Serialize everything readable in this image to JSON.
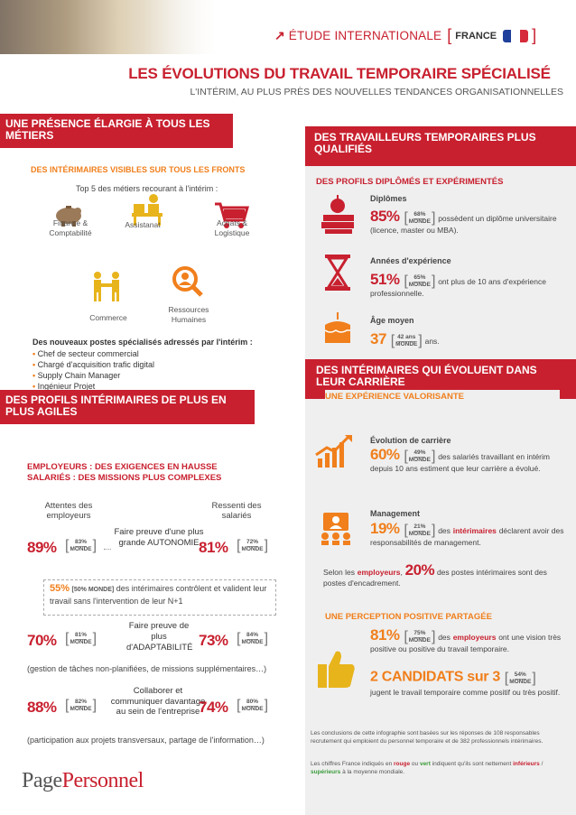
{
  "header": {
    "study_label": "ÉTUDE INTERNATIONALE",
    "country": "FRANCE",
    "title": "LES ÉVOLUTIONS DU TRAVAIL TEMPORAIRE SPÉCIALISÉ",
    "subtitle": "L'INTÉRIM, AU PLUS PRÈS DES NOUVELLES TENDANCES ORGANISATIONNELLES"
  },
  "left_top": {
    "banner": "UNE PRÉSENCE ÉLARGIE À TOUS LES MÉTIERS",
    "heading": "DES INTÉRIMAIRES VISIBLES SUR TOUS LES FRONTS",
    "top5_title": "Top 5 des métiers recourant à l'intérim :",
    "jobs": [
      "Finance & Comptabilité",
      "Assistanat",
      "Achats & Logistique",
      "Commerce",
      "Ressources Humaines"
    ],
    "new_posts_title": "Des nouveaux postes spécialisés adressés par l'intérim :",
    "new_posts": [
      "Chef de secteur commercial",
      "Chargé d'acquisition trafic digital",
      "Supply Chain Manager",
      "Ingénieur Projet"
    ]
  },
  "left_bottom": {
    "banner": "DES PROFILS INTÉRIMAIRES DE PLUS EN PLUS AGILES",
    "heading": "EMPLOYEURS : DES EXIGENCES EN HAUSSE SALARIÉS : DES MISSIONS PLUS COMPLEXES",
    "col_left": "Attentes des employeurs",
    "col_right": "Ressenti des salariés",
    "monde": "MONDE",
    "rows": [
      {
        "left": "89%",
        "left_world": "83%",
        "label": "Faire preuve d'une plus grande AUTONOMIE",
        "right": "81%",
        "right_world": "72%"
      },
      {
        "left": "70%",
        "left_world": "81%",
        "label": "Faire preuve de plus d'ADAPTABILITÉ",
        "right": "73%",
        "right_world": "84%"
      },
      {
        "left": "88%",
        "left_world": "82%",
        "label": "Collaborer et communiquer davantage au sein de l'entreprise",
        "right": "74%",
        "right_world": "80%"
      }
    ],
    "note_pct": "55%",
    "note_world": "[50% MONDE]",
    "note_text": "des intérimaires contrôlent et valident leur travail sans l'intervention de leur N+1",
    "caption_adapt": "(gestion de tâches non-planifiées, de missions supplémentaires…)",
    "caption_collab": "(participation aux projets transversaux, partage de l'information…)"
  },
  "right_top": {
    "banner": "DES TRAVAILLEURS TEMPORAIRES PLUS QUALIFIÉS",
    "heading": "DES PROFILS DIPLÔMÉS ET EXPÉRIMENTÉS",
    "items": [
      {
        "label": "Diplômes",
        "value": "85%",
        "world": "68%",
        "text": "possèdent un diplôme universitaire (licence, master ou MBA)."
      },
      {
        "label": "Années d'expérience",
        "value": "51%",
        "world": "65%",
        "text": "ont plus de 10 ans d'expérience professionnelle."
      },
      {
        "label": "Âge moyen",
        "value": "37",
        "world": "42 ans",
        "text": "ans."
      }
    ]
  },
  "right_bottom": {
    "banner": "DES INTÉRIMAIRES QUI ÉVOLUENT DANS LEUR CARRIÈRE",
    "heading1": "UNE EXPÉRIENCE VALORISANTE",
    "career_label": "Évolution de carrière",
    "career_value": "60%",
    "career_world": "49%",
    "career_text": "des salariés travaillant en intérim depuis 10 ans estiment que leur carrière a évolué.",
    "mgmt_label": "Management",
    "mgmt_value": "19%",
    "mgmt_world": "21%",
    "mgmt_text_pre": "des",
    "mgmt_text_em": "intérimaires",
    "mgmt_text_post": "déclarent avoir des responsabilités de management.",
    "employers_pre": "Selon les",
    "employers_em": "employeurs",
    "employers_value": "20%",
    "employers_text": "des postes intérimaires sont des postes d'encadrement.",
    "heading2": "UNE PERCEPTION POSITIVE PARTAGÉE",
    "vision_value": "81%",
    "vision_world": "75%",
    "vision_pre": "des",
    "vision_em": "employeurs",
    "vision_text": "ont une vision très positive ou positive du travail temporaire.",
    "cand_value": "2 CANDIDATS sur 3",
    "cand_world": "54%",
    "cand_text": "jugent le travail temporaire comme positif ou très positif.",
    "footnote1": "Les conclusions de cette infographie sont basées sur les réponses de 108 responsables recrutement qui emploient du personnel temporaire et de 382 professionnels intérimaires.",
    "footnote2_a": "Les chiffres France indiqués en",
    "footnote2_rouge": "rouge",
    "footnote2_b": "ou",
    "footnote2_vert": "vert",
    "footnote2_c": "indiquent qu'ils sont nettement",
    "footnote2_inf": "inférieurs",
    "footnote2_sep": "/",
    "footnote2_sup": "supérieurs",
    "footnote2_d": "à la moyenne mondiale."
  },
  "logo": {
    "part1": "Page",
    "part2": "Personnel"
  },
  "colors": {
    "red": "#c8202f",
    "orange": "#f07f1c",
    "green": "#3a9a3a"
  }
}
